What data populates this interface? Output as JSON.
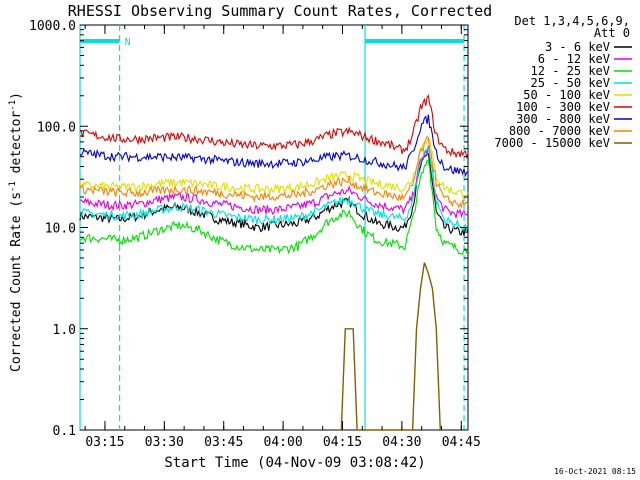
{
  "chart_data": {
    "type": "line",
    "title": "RHESSI Observing Summary Count Rates, Corrected",
    "xlabel": "Start Time (04-Nov-09 03:08:42)",
    "ylabel_main": "Corrected Count Rate (s",
    "ylabel_sup": "-1",
    "ylabel_tail": " detector",
    "ylabel_end": ")",
    "yscale": "log",
    "ylim": [
      0.1,
      1000
    ],
    "xlim_minutes": [
      0,
      98
    ],
    "x_tick_labels": [
      "03:15",
      "03:30",
      "03:45",
      "04:00",
      "04:15",
      "04:30",
      "04:45"
    ],
    "x_tick_minutes": [
      6.3,
      21.3,
      36.3,
      51.3,
      66.3,
      81.3,
      96.3
    ],
    "y_tick_labels": [
      "0.1",
      "1.0",
      "10.0",
      "100.0",
      "1000.0"
    ],
    "y_tick_values": [
      0.1,
      1,
      10,
      100,
      1000
    ],
    "legend_header": [
      "Det 1,3,4,5,6,9,",
      "Att 0"
    ],
    "legend_position": "right",
    "night_label": "N",
    "footer_timestamp": "16-Oct-2021 08:15",
    "night_intervals_minutes": [
      [
        0,
        10
      ],
      [
        72,
        97
      ]
    ],
    "saa_vlines_minutes": [
      0,
      72
    ],
    "dashed_vlines_minutes": [
      10,
      97
    ],
    "series": [
      {
        "name": "3 - 6 keV",
        "color": "#000000",
        "x": [
          0,
          5,
          10,
          15,
          20,
          25,
          30,
          35,
          40,
          45,
          50,
          55,
          60,
          62,
          65,
          68,
          70,
          72,
          75,
          78,
          80,
          82,
          84,
          86,
          88,
          90,
          92,
          94,
          96,
          98
        ],
        "y": [
          13,
          12.5,
          12,
          13,
          15,
          16,
          14,
          12,
          11,
          10,
          10.5,
          11,
          13,
          15,
          17,
          18,
          15,
          13,
          11,
          10.5,
          10,
          10,
          16,
          40,
          55,
          14,
          10,
          9.5,
          9,
          9
        ]
      },
      {
        "name": "6 - 12 keV",
        "color": "#e000e0",
        "x": [
          0,
          5,
          10,
          15,
          20,
          25,
          30,
          35,
          40,
          45,
          50,
          55,
          60,
          62,
          65,
          68,
          70,
          72,
          75,
          78,
          80,
          82,
          84,
          86,
          88,
          90,
          92,
          94,
          96,
          98
        ],
        "y": [
          18,
          17,
          16.5,
          17,
          19,
          20,
          19,
          17,
          16,
          15,
          15,
          16,
          18,
          20,
          22,
          23,
          21,
          19,
          17,
          16,
          15.5,
          15,
          20,
          45,
          60,
          20,
          15,
          14,
          13.5,
          13
        ]
      },
      {
        "name": "12 - 25 keV",
        "color": "#00e000",
        "x": [
          0,
          5,
          10,
          15,
          20,
          25,
          30,
          35,
          40,
          45,
          50,
          55,
          60,
          62,
          65,
          68,
          70,
          72,
          75,
          78,
          80,
          82,
          84,
          86,
          88,
          90,
          92,
          94,
          96,
          98
        ],
        "y": [
          8,
          7.8,
          7.5,
          8,
          9.5,
          10.5,
          9.5,
          7.5,
          6.5,
          6,
          6,
          6.5,
          9,
          11,
          13,
          14,
          11,
          9,
          7.5,
          7,
          6.8,
          6.5,
          12,
          30,
          50,
          10,
          7,
          6.5,
          6,
          6
        ]
      },
      {
        "name": "25 - 50 keV",
        "color": "#00e0e0",
        "x": [
          0,
          5,
          10,
          15,
          20,
          25,
          30,
          35,
          40,
          45,
          50,
          55,
          60,
          62,
          65,
          68,
          70,
          72,
          75,
          78,
          80,
          82,
          84,
          86,
          88,
          90,
          92,
          94,
          96,
          98
        ],
        "y": [
          14,
          13.5,
          13,
          13.5,
          15,
          16,
          15,
          13.5,
          12.5,
          12,
          12,
          12.5,
          14.5,
          16,
          18,
          19,
          17,
          15,
          13.5,
          13,
          12.5,
          12,
          18,
          45,
          65,
          18,
          12,
          11,
          10.5,
          10
        ]
      },
      {
        "name": "50 - 100 keV",
        "color": "#e0e000",
        "x": [
          0,
          5,
          10,
          15,
          20,
          25,
          30,
          35,
          40,
          45,
          50,
          55,
          60,
          62,
          65,
          68,
          70,
          72,
          75,
          78,
          80,
          82,
          84,
          86,
          88,
          90,
          92,
          94,
          96,
          98
        ],
        "y": [
          26,
          25.5,
          25,
          25.5,
          27,
          28,
          27,
          25.5,
          24.5,
          24,
          24,
          25,
          28,
          30,
          32,
          33,
          31,
          29,
          27,
          26,
          25,
          24.5,
          30,
          60,
          80,
          32,
          25,
          23,
          22,
          22
        ]
      },
      {
        "name": "100 - 300 keV",
        "color": "#e00000",
        "x": [
          0,
          5,
          10,
          15,
          20,
          25,
          30,
          35,
          40,
          45,
          50,
          55,
          60,
          62,
          65,
          68,
          70,
          72,
          75,
          78,
          80,
          82,
          84,
          86,
          88,
          90,
          92,
          94,
          96,
          98
        ],
        "y": [
          85,
          80,
          75,
          75,
          77,
          78,
          75,
          70,
          66,
          64,
          64,
          66,
          74,
          80,
          86,
          88,
          84,
          78,
          72,
          66,
          60,
          58,
          80,
          150,
          190,
          80,
          60,
          55,
          54,
          54
        ]
      },
      {
        "name": "300 - 800 keV",
        "color": "#0000d0",
        "x": [
          0,
          5,
          10,
          15,
          20,
          25,
          30,
          35,
          40,
          45,
          50,
          55,
          60,
          62,
          65,
          68,
          70,
          72,
          75,
          78,
          80,
          82,
          84,
          86,
          88,
          90,
          92,
          94,
          96,
          98
        ],
        "y": [
          55,
          52,
          50,
          50,
          50,
          49,
          48,
          46,
          44,
          43,
          43,
          44,
          47,
          49,
          51,
          51,
          49,
          47,
          44,
          42,
          40,
          39,
          55,
          100,
          120,
          55,
          40,
          37,
          36,
          36
        ]
      },
      {
        "name": "800 - 7000 keV",
        "color": "#ff8000",
        "x": [
          0,
          5,
          10,
          15,
          20,
          25,
          30,
          35,
          40,
          45,
          50,
          55,
          60,
          62,
          65,
          68,
          70,
          72,
          75,
          78,
          80,
          82,
          84,
          86,
          88,
          90,
          92,
          94,
          96,
          98
        ],
        "y": [
          24,
          23,
          22,
          22,
          23,
          24,
          23,
          22,
          21,
          20,
          20.5,
          21,
          24,
          26,
          28,
          29,
          26,
          24,
          22,
          21,
          20,
          19.5,
          26,
          55,
          75,
          28,
          19,
          18,
          17,
          17
        ]
      },
      {
        "name": "7000 - 15000 keV",
        "color": "#806000",
        "x": [
          65,
          66,
          67,
          68,
          69,
          70,
          71,
          84,
          85,
          86,
          87,
          88,
          89,
          90,
          91
        ],
        "y": [
          0.1,
          0.1,
          1.0,
          1.0,
          1.0,
          0.1,
          0.1,
          0.1,
          1.0,
          2.5,
          4.5,
          3.5,
          2.5,
          1.0,
          0.1
        ]
      }
    ]
  }
}
